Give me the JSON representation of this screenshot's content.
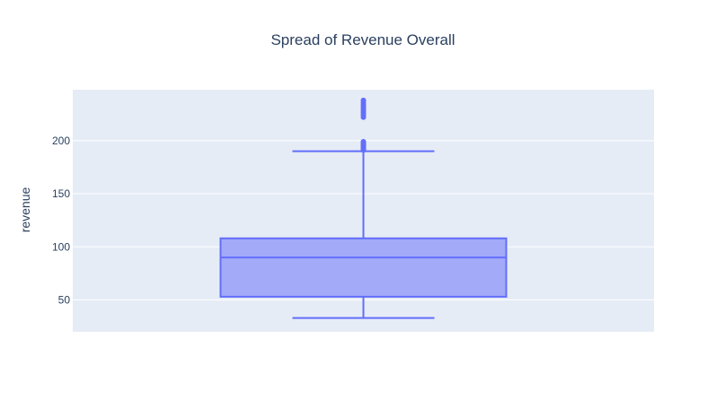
{
  "chart_data": {
    "type": "box",
    "title": "Spread of Revenue Overall",
    "xlabel": "",
    "ylabel": "revenue",
    "ylim": [
      20,
      248
    ],
    "yticks": [
      50,
      100,
      150,
      200
    ],
    "grid": true,
    "box": {
      "min": 33,
      "q1": 53,
      "median": 90,
      "q3": 108,
      "max": 190,
      "outliers": [
        191,
        192,
        193,
        194,
        195,
        196,
        197,
        198,
        199,
        222,
        224,
        226,
        228,
        230,
        232,
        234,
        236,
        238
      ]
    },
    "colors": {
      "plot_bg": "#e5ecf6",
      "grid": "#ffffff",
      "box_line": "#636efa",
      "box_fill": "#a3aaf8",
      "text": "#2a3f5f"
    }
  }
}
